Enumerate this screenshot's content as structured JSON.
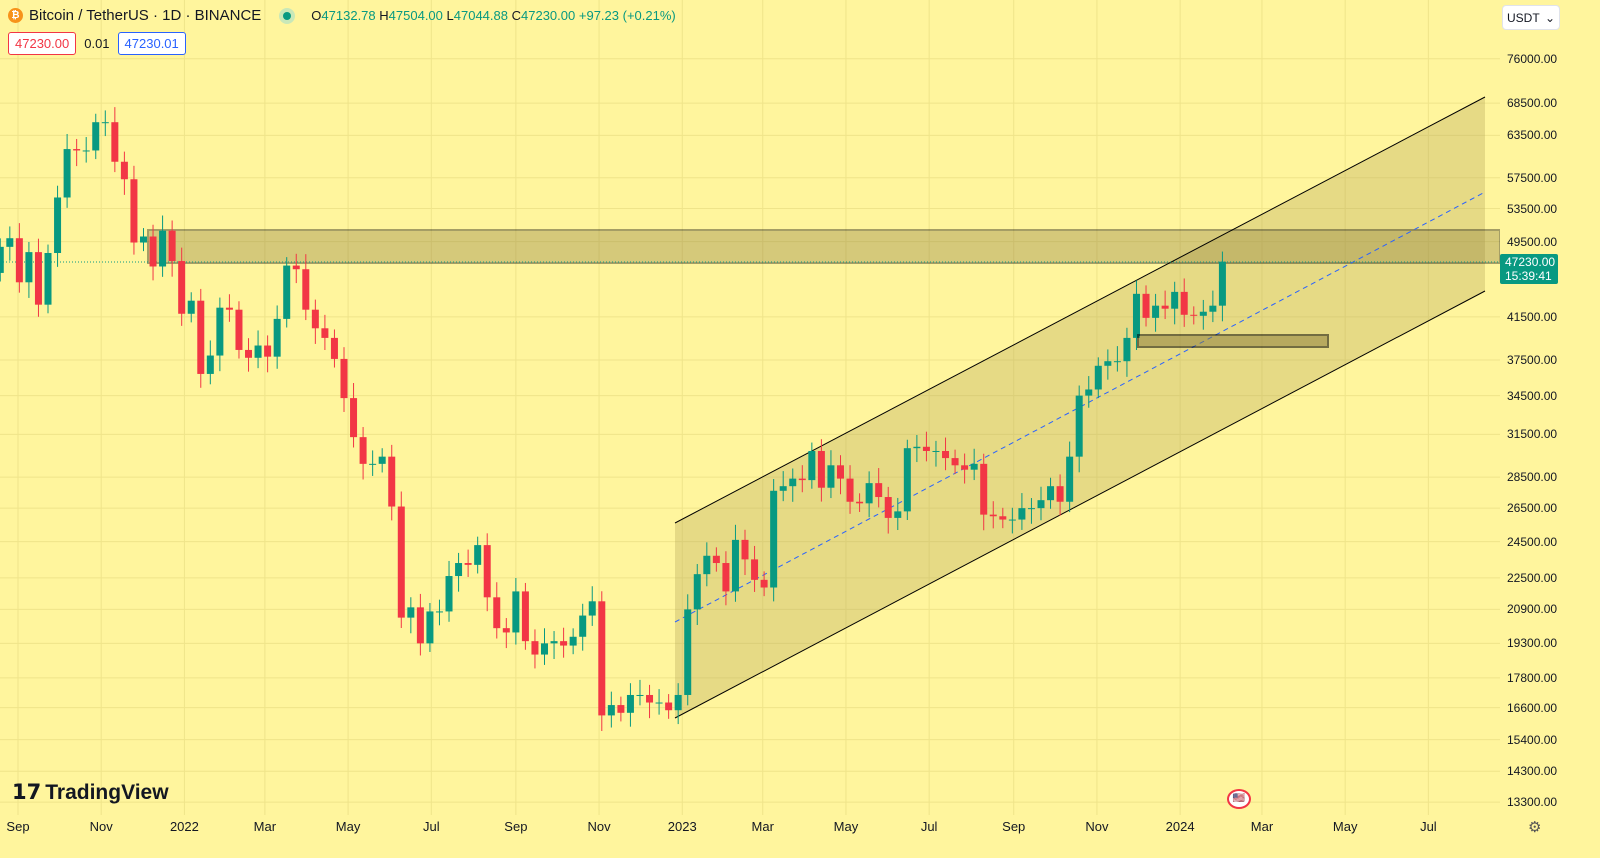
{
  "header": {
    "symbol": "Bitcoin / TetherUS · 1D · BINANCE",
    "open": "47132.78",
    "high": "47504.00",
    "low": "47044.88",
    "close": "47230.00",
    "change": "+97.23 (+0.21%)",
    "o": "O",
    "h": "H",
    "l": "L",
    "c": "C"
  },
  "quote": {
    "sell": "47230.00",
    "spread": "0.01",
    "buy": "47230.01"
  },
  "currency": "USDT",
  "last_price": {
    "price": "47230.00",
    "countdown": "15:39:41"
  },
  "logo": "TradingView",
  "colors": {
    "background": "#fff59d",
    "up": "#089981",
    "down": "#f23645",
    "channel": "#000000",
    "midline": "#2962ff"
  },
  "chart_data": {
    "type": "candlestick",
    "title": "Bitcoin / TetherUS · 1D · BINANCE",
    "scale": "log",
    "interval_shown": "weekly approximation",
    "ylim": [
      12800,
      82000
    ],
    "y_ticks": [
      "76000.00",
      "68500.00",
      "63500.00",
      "57500.00",
      "53500.00",
      "49500.00",
      "41500.00",
      "37500.00",
      "34500.00",
      "31500.00",
      "28500.00",
      "26500.00",
      "24500.00",
      "22500.00",
      "20900.00",
      "19300.00",
      "17800.00",
      "16600.00",
      "15400.00",
      "14300.00",
      "13300.00"
    ],
    "x_ticks": [
      {
        "label": "Sep",
        "date": "2021-09-01"
      },
      {
        "label": "Nov",
        "date": "2021-11-01"
      },
      {
        "label": "2022",
        "date": "2022-01-01"
      },
      {
        "label": "Mar",
        "date": "2022-03-01"
      },
      {
        "label": "May",
        "date": "2022-05-01"
      },
      {
        "label": "Jul",
        "date": "2022-07-01"
      },
      {
        "label": "Sep",
        "date": "2022-09-01"
      },
      {
        "label": "Nov",
        "date": "2022-11-01"
      },
      {
        "label": "2023",
        "date": "2023-01-01"
      },
      {
        "label": "Mar",
        "date": "2023-03-01"
      },
      {
        "label": "May",
        "date": "2023-05-01"
      },
      {
        "label": "Jul",
        "date": "2023-07-01"
      },
      {
        "label": "Sep",
        "date": "2023-09-01"
      },
      {
        "label": "Nov",
        "date": "2023-11-01"
      },
      {
        "label": "2024",
        "date": "2024-01-01"
      },
      {
        "label": "Mar",
        "date": "2024-03-01"
      },
      {
        "label": "May",
        "date": "2024-05-01"
      },
      {
        "label": "Jul",
        "date": "2024-07-01"
      }
    ],
    "start": "2021-08-16",
    "first_open": 46000,
    "weekly_close": [
      48900,
      49900,
      45000,
      48300,
      42700,
      48200,
      54900,
      61500,
      61300,
      61300,
      65500,
      65500,
      59700,
      57300,
      49400,
      50100,
      46700,
      50800,
      47300,
      41800,
      43100,
      36300,
      37900,
      42400,
      42200,
      38400,
      37700,
      38800,
      37800,
      41300,
      46800,
      46400,
      42200,
      40400,
      39500,
      37600,
      34300,
      31300,
      29400,
      29400,
      29900,
      26600,
      20500,
      21000,
      19300,
      20800,
      20800,
      22600,
      23300,
      23200,
      24300,
      21500,
      20000,
      19800,
      21800,
      19400,
      18800,
      19300,
      19400,
      19200,
      19600,
      20600,
      21300,
      16300,
      16700,
      16400,
      17100,
      17100,
      16800,
      16800,
      16500,
      17100,
      20900,
      22700,
      23700,
      23300,
      21800,
      24600,
      23500,
      22400,
      22000,
      27600,
      27900,
      28400,
      28300,
      30300,
      27800,
      29300,
      28400,
      26900,
      26800,
      28100,
      27200,
      25900,
      26300,
      30500,
      30600,
      30300,
      30300,
      29800,
      29300,
      29000,
      29400,
      26100,
      26000,
      25800,
      25800,
      26500,
      26500,
      27000,
      27900,
      26900,
      29900,
      34500,
      35000,
      37000,
      37400,
      37400,
      39500,
      43800,
      41400,
      42600,
      42300,
      44000,
      41700,
      41600,
      42000,
      42600,
      47230
    ],
    "drawings": {
      "resistance_zone": [
        47230,
        51100
      ],
      "support_zone": [
        38900,
        40000
      ],
      "channel": "ascending parallel channel from Dec 2022"
    }
  }
}
